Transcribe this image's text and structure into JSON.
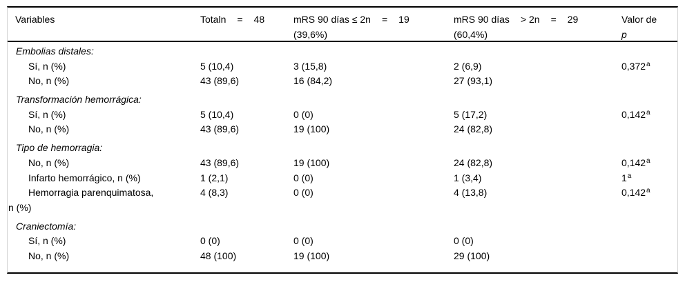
{
  "table": {
    "header": {
      "variables": "Variables",
      "total": {
        "parts": [
          "Totaln",
          "=",
          "48"
        ]
      },
      "mrs_le2": {
        "parts": [
          "mRS 90 días ≤ 2n",
          "=",
          "19"
        ],
        "line2": "(39,6%)"
      },
      "mrs_gt2": {
        "parts": [
          "mRS 90 días",
          "> 2n",
          "=",
          "29"
        ],
        "line2": "(60,4%)"
      },
      "p_value": {
        "line1": "Valor de",
        "line2": "p"
      }
    },
    "rows": [
      {
        "type": "section",
        "label": "Embolias distales:"
      },
      {
        "type": "item",
        "label": "Sí, n (%)",
        "total": "5 (10,4)",
        "le2": "3 (15,8)",
        "gt2": "2 (6,9)",
        "p": "0,372",
        "p_sup": "a"
      },
      {
        "type": "item",
        "label": "No, n (%)",
        "total": "43 (89,6)",
        "le2": "16 (84,2)",
        "gt2": "27 (93,1)"
      },
      {
        "type": "section",
        "label": "Transformación hemorrágica:"
      },
      {
        "type": "item",
        "label": "Sí, n (%)",
        "total": "5 (10,4)",
        "le2": "0 (0)",
        "gt2": "5 (17,2)",
        "p": "0,142",
        "p_sup": "a"
      },
      {
        "type": "item",
        "label": "No, n (%)",
        "total": "43 (89,6)",
        "le2": "19 (100)",
        "gt2": "24 (82,8)"
      },
      {
        "type": "section",
        "label": "Tipo de hemorragia:"
      },
      {
        "type": "item",
        "label": "No, n (%)",
        "total": "43 (89,6)",
        "le2": "19 (100)",
        "gt2": "24 (82,8)",
        "p": "0,142",
        "p_sup": "a"
      },
      {
        "type": "item",
        "label": "Infarto hemorrágico, n (%)",
        "total": "1 (2,1)",
        "le2": "0 (0)",
        "gt2": "1 (3,4)",
        "p": "1",
        "p_sup": "a"
      },
      {
        "type": "item-wrap",
        "label": "Hemorragia parenquimatosa,",
        "label2": "n (%)",
        "total": "4 (8,3)",
        "le2": "0 (0)",
        "gt2": "4 (13,8)",
        "p": "0,142",
        "p_sup": "a"
      },
      {
        "type": "section",
        "label": "Craniectomía:"
      },
      {
        "type": "item",
        "label": "Sí, n (%)",
        "total": "0 (0)",
        "le2": "0 (0)",
        "gt2": "0 (0)"
      },
      {
        "type": "item",
        "label": "No, n (%)",
        "total": "48 (100)",
        "le2": "19 (100)",
        "gt2": "29 (100)"
      }
    ]
  }
}
